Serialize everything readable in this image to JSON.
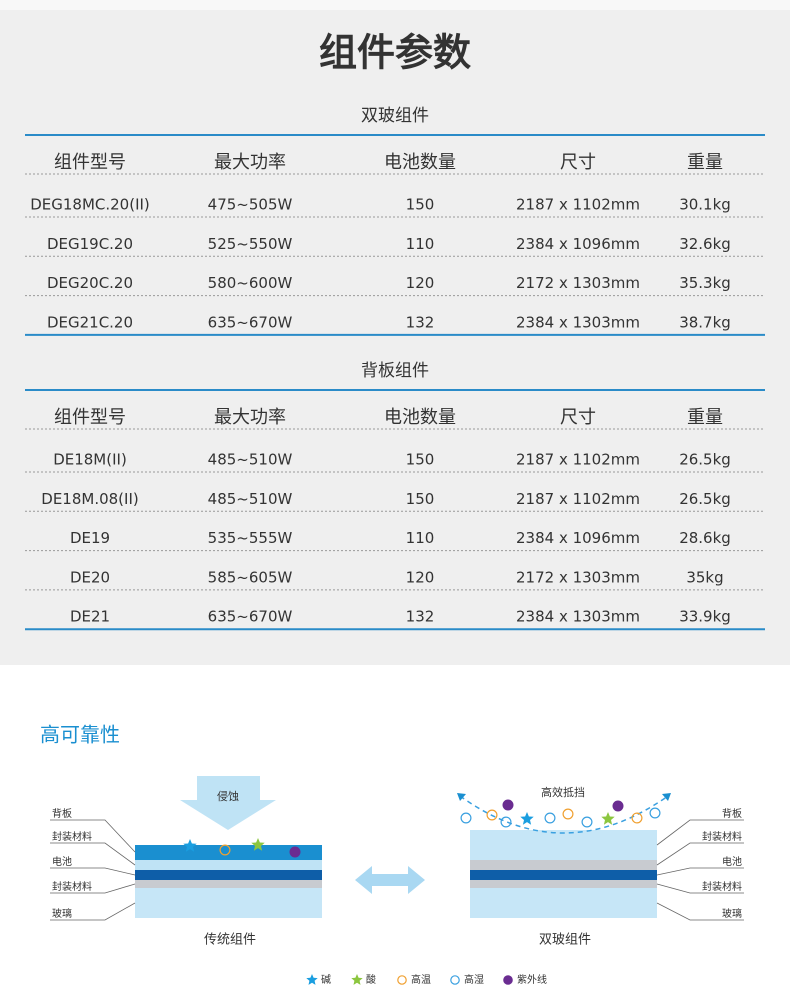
{
  "header": {
    "title": "组件参数"
  },
  "tables": [
    {
      "title": "双玻组件",
      "headers": [
        "组件型号",
        "最大功率",
        "电池数量",
        "尺寸",
        "重量"
      ],
      "rows": [
        [
          "DEG18MC.20(II)",
          "475~505W",
          "150",
          "2187 x 1102mm",
          "30.1kg"
        ],
        [
          "DEG19C.20",
          "525~550W",
          "110",
          "2384 x 1096mm",
          "32.6kg"
        ],
        [
          "DEG20C.20",
          "580~600W",
          "120",
          "2172 x 1303mm",
          "35.3kg"
        ],
        [
          "DEG21C.20",
          "635~670W",
          "132",
          "2384 x 1303mm",
          "38.7kg"
        ]
      ]
    },
    {
      "title": "背板组件",
      "headers": [
        "组件型号",
        "最大功率",
        "电池数量",
        "尺寸",
        "重量"
      ],
      "rows": [
        [
          "DE18M(II)",
          "485~510W",
          "150",
          "2187 x 1102mm",
          "26.5kg"
        ],
        [
          "DE18M.08(II)",
          "485~510W",
          "150",
          "2187 x 1102mm",
          "26.5kg"
        ],
        [
          "DE19",
          "535~555W",
          "110",
          "2384 x 1096mm",
          "28.6kg"
        ],
        [
          "DE20",
          "585~605W",
          "120",
          "2172 x 1303mm",
          "35kg"
        ],
        [
          "DE21",
          "635~670W",
          "132",
          "2384 x 1303mm",
          "33.9kg"
        ]
      ]
    }
  ],
  "reliability": {
    "title": "高可靠性",
    "left": {
      "label": "侵蚀",
      "layers": [
        "背板",
        "封装材料",
        "电池",
        "封装材料",
        "玻璃"
      ],
      "caption": "传统组件"
    },
    "right": {
      "label": "高效抵挡",
      "layers": [
        "背板",
        "封装材料",
        "电池",
        "封装材料",
        "玻璃"
      ],
      "caption": "双玻组件"
    },
    "legend": [
      "碱",
      "酸",
      "高温",
      "高湿",
      "紫外线"
    ]
  }
}
